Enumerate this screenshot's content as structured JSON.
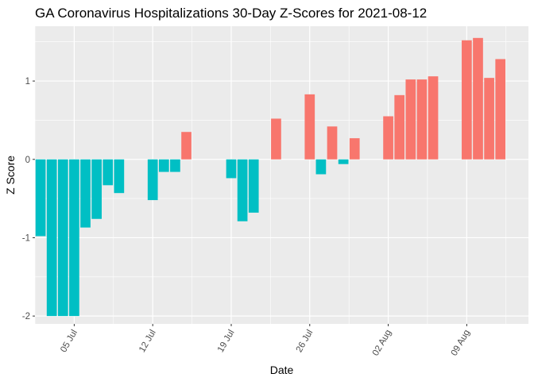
{
  "chart_data": {
    "type": "bar",
    "title": "GA Coronavirus Hospitalizations 30-Day Z-Scores for 2021-08-12",
    "xlabel": "Date",
    "ylabel": "Z Score",
    "ylim": [
      -2.1,
      1.7
    ],
    "y_ticks": [
      -2,
      -1,
      0,
      1
    ],
    "y_tick_labels": [
      "-2",
      "-1",
      "0",
      "1"
    ],
    "x_range": [
      "2021-07-01",
      "2021-08-14"
    ],
    "x_ticks": [
      "2021-07-05",
      "2021-07-12",
      "2021-07-19",
      "2021-07-26",
      "2021-08-02",
      "2021-08-09"
    ],
    "x_tick_labels": [
      "05 Jul",
      "12 Jul",
      "19 Jul",
      "26 Jul",
      "02 Aug",
      "09 Aug"
    ],
    "grid": true,
    "legend": "none",
    "colors": {
      "positive": "#F8766D",
      "negative": "#00BFC4",
      "panel": "#EBEBEB",
      "grid": "#FFFFFF"
    },
    "points": [
      {
        "date": "2021-07-02",
        "value": -0.98
      },
      {
        "date": "2021-07-03",
        "value": -2.0
      },
      {
        "date": "2021-07-04",
        "value": -2.0
      },
      {
        "date": "2021-07-05",
        "value": -2.0
      },
      {
        "date": "2021-07-06",
        "value": -0.87
      },
      {
        "date": "2021-07-07",
        "value": -0.76
      },
      {
        "date": "2021-07-08",
        "value": -0.33
      },
      {
        "date": "2021-07-09",
        "value": -0.43
      },
      {
        "date": "2021-07-10",
        "value": 0.0
      },
      {
        "date": "2021-07-11",
        "value": 0.0
      },
      {
        "date": "2021-07-12",
        "value": -0.52
      },
      {
        "date": "2021-07-13",
        "value": -0.16
      },
      {
        "date": "2021-07-14",
        "value": -0.16
      },
      {
        "date": "2021-07-15",
        "value": 0.35
      },
      {
        "date": "2021-07-16",
        "value": 0.0
      },
      {
        "date": "2021-07-17",
        "value": 0.0
      },
      {
        "date": "2021-07-18",
        "value": 0.0
      },
      {
        "date": "2021-07-19",
        "value": -0.24
      },
      {
        "date": "2021-07-20",
        "value": -0.79
      },
      {
        "date": "2021-07-21",
        "value": -0.68
      },
      {
        "date": "2021-07-22",
        "value": 0.0
      },
      {
        "date": "2021-07-23",
        "value": 0.52
      },
      {
        "date": "2021-07-24",
        "value": 0.0
      },
      {
        "date": "2021-07-25",
        "value": 0.0
      },
      {
        "date": "2021-07-26",
        "value": 0.83
      },
      {
        "date": "2021-07-27",
        "value": -0.19
      },
      {
        "date": "2021-07-28",
        "value": 0.42
      },
      {
        "date": "2021-07-29",
        "value": -0.06
      },
      {
        "date": "2021-07-30",
        "value": 0.27
      },
      {
        "date": "2021-07-31",
        "value": 0.0
      },
      {
        "date": "2021-08-01",
        "value": 0.0
      },
      {
        "date": "2021-08-02",
        "value": 0.55
      },
      {
        "date": "2021-08-03",
        "value": 0.82
      },
      {
        "date": "2021-08-04",
        "value": 1.02
      },
      {
        "date": "2021-08-05",
        "value": 1.02
      },
      {
        "date": "2021-08-06",
        "value": 1.06
      },
      {
        "date": "2021-08-07",
        "value": 0.0
      },
      {
        "date": "2021-08-08",
        "value": 0.0
      },
      {
        "date": "2021-08-09",
        "value": 1.52
      },
      {
        "date": "2021-08-10",
        "value": 1.55
      },
      {
        "date": "2021-08-11",
        "value": 1.04
      },
      {
        "date": "2021-08-12",
        "value": 1.28
      }
    ]
  }
}
